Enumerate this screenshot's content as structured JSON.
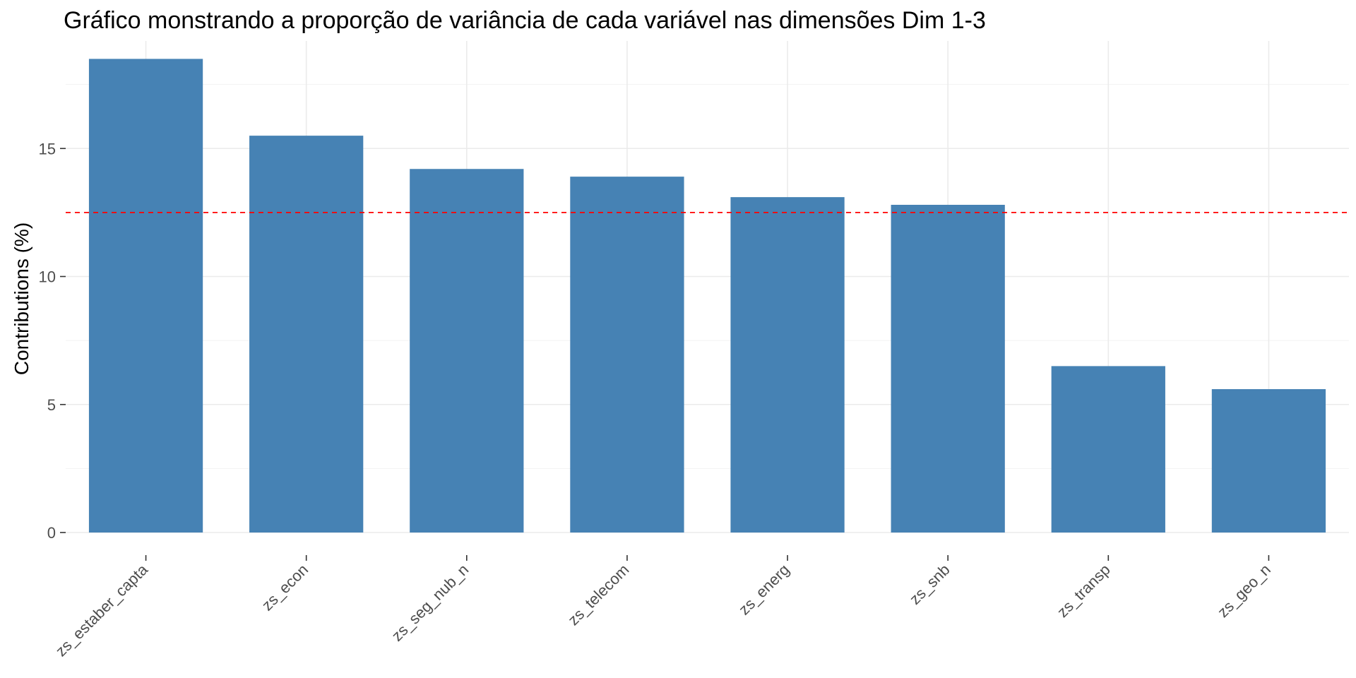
{
  "chart_data": {
    "type": "bar",
    "title": "Gráfico monstrando a proporção de variância de cada variável nas dimensões Dim 1-3",
    "xlabel": "",
    "ylabel": "Contributions (%)",
    "categories": [
      "zs_estaber_capta",
      "zs_econ",
      "zs_seg_nub_n",
      "zs_telecom",
      "zs_energ",
      "zs_snb",
      "zs_transp",
      "zs_geo_n"
    ],
    "values": [
      18.5,
      15.5,
      14.2,
      13.9,
      13.1,
      12.8,
      6.5,
      5.6
    ],
    "ylim": [
      0,
      19.2
    ],
    "yticks": [
      0,
      5,
      10,
      15
    ],
    "ytick_labels": [
      "0",
      "5",
      "10",
      "15"
    ],
    "reference_line": {
      "value": 12.5,
      "style": "dashed"
    },
    "grid": true,
    "legend": "none",
    "colors": {
      "bar": "#4682B4",
      "reference_line": "#FF0000"
    }
  }
}
